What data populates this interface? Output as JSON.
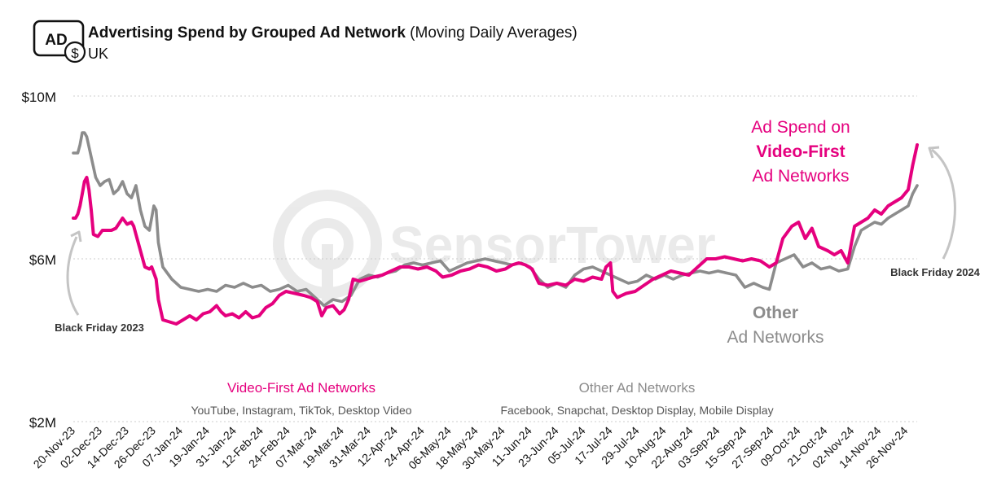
{
  "header": {
    "icon_name": "ad-dollar-icon",
    "icon_text": "AD",
    "title": "Advertising Spend by Grouped Ad Network",
    "subtitle": "(Moving Daily Averages)",
    "region": "UK"
  },
  "watermark": "SensorTower",
  "annotations": {
    "video_first_callout": [
      "Ad Spend on",
      "Video-First",
      "Ad Networks"
    ],
    "other_callout": [
      "Other",
      "Ad Networks"
    ],
    "black_friday_2023": "Black Friday 2023",
    "black_friday_2024": "Black Friday 2024"
  },
  "legend": {
    "video_first": {
      "title": "Video-First Ad Networks",
      "desc": "YouTube, Instagram, TikTok, Desktop Video"
    },
    "other": {
      "title": "Other Ad Networks",
      "desc": "Facebook, Snapchat, Desktop Display, Mobile Display"
    }
  },
  "colors": {
    "video_first": "#e5007e",
    "other": "#8c8c8c",
    "grid": "#cccccc",
    "arrow": "#c4c4c4"
  },
  "chart_data": {
    "type": "line",
    "title": "Advertising Spend by Grouped Ad Network",
    "ylim": [
      2,
      10
    ],
    "y_ticks": [
      {
        "value": 10,
        "label": "$10M"
      },
      {
        "value": 6,
        "label": "$6M"
      },
      {
        "value": 2,
        "label": "$2M"
      }
    ],
    "x_ticks": [
      "20-Nov-23",
      "02-Dec-23",
      "14-Dec-23",
      "26-Dec-23",
      "07-Jan-24",
      "19-Jan-24",
      "31-Jan-24",
      "12-Feb-24",
      "24-Feb-24",
      "07-Mar-24",
      "19-Mar-24",
      "31-Mar-24",
      "12-Apr-24",
      "24-Apr-24",
      "06-May-24",
      "18-May-24",
      "30-May-24",
      "11-Jun-24",
      "23-Jun-24",
      "05-Jul-24",
      "17-Jul-24",
      "29-Jul-24",
      "10-Aug-24",
      "22-Aug-24",
      "03-Sep-24",
      "15-Sep-24",
      "27-Sep-24",
      "09-Oct-24",
      "21-Oct-24",
      "02-Nov-24",
      "14-Nov-24",
      "26-Nov-24"
    ],
    "x_start": "20-Nov-23",
    "x_end": "01-Dec-24",
    "grid": true,
    "series": [
      {
        "name": "Video-First Ad Networks",
        "key": "video_first",
        "points": [
          [
            "20-Nov-23",
            7.0
          ],
          [
            "21-Nov-23",
            7.0
          ],
          [
            "22-Nov-23",
            7.1
          ],
          [
            "23-Nov-23",
            7.3
          ],
          [
            "24-Nov-23",
            7.6
          ],
          [
            "25-Nov-23",
            7.9
          ],
          [
            "26-Nov-23",
            8.0
          ],
          [
            "27-Nov-23",
            7.7
          ],
          [
            "28-Nov-23",
            7.2
          ],
          [
            "29-Nov-23",
            6.6
          ],
          [
            "01-Dec-23",
            6.55
          ],
          [
            "03-Dec-23",
            6.7
          ],
          [
            "05-Dec-23",
            6.7
          ],
          [
            "07-Dec-23",
            6.7
          ],
          [
            "09-Dec-23",
            6.75
          ],
          [
            "12-Dec-23",
            7.0
          ],
          [
            "14-Dec-23",
            6.85
          ],
          [
            "16-Dec-23",
            6.9
          ],
          [
            "17-Dec-23",
            6.8
          ],
          [
            "18-Dec-23",
            6.6
          ],
          [
            "20-Dec-23",
            6.2
          ],
          [
            "22-Dec-23",
            5.8
          ],
          [
            "24-Dec-23",
            5.75
          ],
          [
            "25-Dec-23",
            5.8
          ],
          [
            "27-Dec-23",
            5.5
          ],
          [
            "28-Dec-23",
            5.0
          ],
          [
            "30-Dec-23",
            4.5
          ],
          [
            "02-Jan-24",
            4.45
          ],
          [
            "05-Jan-24",
            4.4
          ],
          [
            "08-Jan-24",
            4.5
          ],
          [
            "11-Jan-24",
            4.6
          ],
          [
            "14-Jan-24",
            4.5
          ],
          [
            "17-Jan-24",
            4.65
          ],
          [
            "20-Jan-24",
            4.7
          ],
          [
            "23-Jan-24",
            4.85
          ],
          [
            "25-Jan-24",
            4.7
          ],
          [
            "27-Jan-24",
            4.6
          ],
          [
            "30-Jan-24",
            4.65
          ],
          [
            "02-Feb-24",
            4.55
          ],
          [
            "05-Feb-24",
            4.7
          ],
          [
            "08-Feb-24",
            4.55
          ],
          [
            "11-Feb-24",
            4.6
          ],
          [
            "14-Feb-24",
            4.8
          ],
          [
            "17-Feb-24",
            4.9
          ],
          [
            "20-Feb-24",
            5.1
          ],
          [
            "23-Feb-24",
            5.2
          ],
          [
            "27-Feb-24",
            5.15
          ],
          [
            "02-Mar-24",
            5.1
          ],
          [
            "05-Mar-24",
            5.05
          ],
          [
            "08-Mar-24",
            4.95
          ],
          [
            "10-Mar-24",
            4.6
          ],
          [
            "12-Mar-24",
            4.8
          ],
          [
            "15-Mar-24",
            4.85
          ],
          [
            "18-Mar-24",
            4.65
          ],
          [
            "20-Mar-24",
            4.75
          ],
          [
            "22-Mar-24",
            5.0
          ],
          [
            "24-Mar-24",
            5.5
          ],
          [
            "27-Mar-24",
            5.45
          ],
          [
            "30-Mar-24",
            5.5
          ],
          [
            "02-Apr-24",
            5.55
          ],
          [
            "06-Apr-24",
            5.6
          ],
          [
            "10-Apr-24",
            5.7
          ],
          [
            "14-Apr-24",
            5.8
          ],
          [
            "18-Apr-24",
            5.8
          ],
          [
            "22-Apr-24",
            5.75
          ],
          [
            "26-Apr-24",
            5.8
          ],
          [
            "30-Apr-24",
            5.7
          ],
          [
            "03-May-24",
            5.55
          ],
          [
            "07-May-24",
            5.6
          ],
          [
            "11-May-24",
            5.7
          ],
          [
            "15-May-24",
            5.75
          ],
          [
            "19-May-24",
            5.85
          ],
          [
            "23-May-24",
            5.8
          ],
          [
            "27-May-24",
            5.7
          ],
          [
            "31-May-24",
            5.75
          ],
          [
            "03-Jun-24",
            5.85
          ],
          [
            "06-Jun-24",
            5.9
          ],
          [
            "09-Jun-24",
            5.85
          ],
          [
            "12-Jun-24",
            5.75
          ],
          [
            "15-Jun-24",
            5.4
          ],
          [
            "19-Jun-24",
            5.35
          ],
          [
            "23-Jun-24",
            5.4
          ],
          [
            "27-Jun-24",
            5.35
          ],
          [
            "01-Jul-24",
            5.5
          ],
          [
            "05-Jul-24",
            5.45
          ],
          [
            "09-Jul-24",
            5.55
          ],
          [
            "13-Jul-24",
            5.5
          ],
          [
            "15-Jul-24",
            5.8
          ],
          [
            "17-Jul-24",
            5.9
          ],
          [
            "18-Jul-24",
            5.2
          ],
          [
            "20-Jul-24",
            5.05
          ],
          [
            "24-Jul-24",
            5.15
          ],
          [
            "28-Jul-24",
            5.2
          ],
          [
            "01-Aug-24",
            5.35
          ],
          [
            "05-Aug-24",
            5.5
          ],
          [
            "09-Aug-24",
            5.6
          ],
          [
            "13-Aug-24",
            5.7
          ],
          [
            "17-Aug-24",
            5.65
          ],
          [
            "21-Aug-24",
            5.6
          ],
          [
            "25-Aug-24",
            5.8
          ],
          [
            "29-Aug-24",
            6.0
          ],
          [
            "02-Sep-24",
            6.0
          ],
          [
            "06-Sep-24",
            6.05
          ],
          [
            "10-Sep-24",
            6.0
          ],
          [
            "14-Sep-24",
            5.95
          ],
          [
            "18-Sep-24",
            6.0
          ],
          [
            "22-Sep-24",
            5.95
          ],
          [
            "26-Sep-24",
            5.8
          ],
          [
            "29-Sep-24",
            5.9
          ],
          [
            "02-Oct-24",
            6.5
          ],
          [
            "06-Oct-24",
            6.8
          ],
          [
            "09-Oct-24",
            6.9
          ],
          [
            "12-Oct-24",
            6.5
          ],
          [
            "15-Oct-24",
            6.75
          ],
          [
            "18-Oct-24",
            6.3
          ],
          [
            "22-Oct-24",
            6.2
          ],
          [
            "25-Oct-24",
            6.1
          ],
          [
            "28-Oct-24",
            6.2
          ],
          [
            "31-Oct-24",
            5.9
          ],
          [
            "03-Nov-24",
            6.8
          ],
          [
            "06-Nov-24",
            6.9
          ],
          [
            "09-Nov-24",
            7.0
          ],
          [
            "12-Nov-24",
            7.2
          ],
          [
            "15-Nov-24",
            7.1
          ],
          [
            "18-Nov-24",
            7.3
          ],
          [
            "21-Nov-24",
            7.4
          ],
          [
            "24-Nov-24",
            7.5
          ],
          [
            "27-Nov-24",
            7.7
          ],
          [
            "29-Nov-24",
            8.3
          ],
          [
            "01-Dec-24",
            8.8
          ]
        ]
      },
      {
        "name": "Other Ad Networks",
        "key": "other",
        "points": [
          [
            "20-Nov-23",
            8.6
          ],
          [
            "21-Nov-23",
            8.6
          ],
          [
            "22-Nov-23",
            8.6
          ],
          [
            "23-Nov-23",
            8.8
          ],
          [
            "24-Nov-23",
            9.1
          ],
          [
            "25-Nov-23",
            9.1
          ],
          [
            "26-Nov-23",
            9.0
          ],
          [
            "28-Nov-23",
            8.5
          ],
          [
            "30-Nov-23",
            8.0
          ],
          [
            "02-Dec-23",
            7.8
          ],
          [
            "04-Dec-23",
            7.9
          ],
          [
            "06-Dec-23",
            7.95
          ],
          [
            "08-Dec-23",
            7.6
          ],
          [
            "10-Dec-23",
            7.7
          ],
          [
            "12-Dec-23",
            7.9
          ],
          [
            "14-Dec-23",
            7.6
          ],
          [
            "16-Dec-23",
            7.5
          ],
          [
            "18-Dec-23",
            7.8
          ],
          [
            "20-Dec-23",
            7.2
          ],
          [
            "22-Dec-23",
            6.8
          ],
          [
            "24-Dec-23",
            6.7
          ],
          [
            "26-Dec-23",
            7.3
          ],
          [
            "27-Dec-23",
            7.2
          ],
          [
            "28-Dec-23",
            6.4
          ],
          [
            "30-Dec-23",
            5.8
          ],
          [
            "03-Jan-24",
            5.5
          ],
          [
            "07-Jan-24",
            5.3
          ],
          [
            "11-Jan-24",
            5.25
          ],
          [
            "15-Jan-24",
            5.2
          ],
          [
            "19-Jan-24",
            5.25
          ],
          [
            "23-Jan-24",
            5.2
          ],
          [
            "27-Jan-24",
            5.35
          ],
          [
            "31-Jan-24",
            5.3
          ],
          [
            "04-Feb-24",
            5.4
          ],
          [
            "08-Feb-24",
            5.3
          ],
          [
            "12-Feb-24",
            5.35
          ],
          [
            "16-Feb-24",
            5.2
          ],
          [
            "20-Feb-24",
            5.25
          ],
          [
            "24-Feb-24",
            5.35
          ],
          [
            "28-Feb-24",
            5.2
          ],
          [
            "03-Mar-24",
            5.25
          ],
          [
            "07-Mar-24",
            5.05
          ],
          [
            "11-Mar-24",
            4.85
          ],
          [
            "15-Mar-24",
            5.0
          ],
          [
            "19-Mar-24",
            4.95
          ],
          [
            "23-Mar-24",
            5.1
          ],
          [
            "27-Mar-24",
            5.5
          ],
          [
            "31-Mar-24",
            5.6
          ],
          [
            "04-Apr-24",
            5.55
          ],
          [
            "08-Apr-24",
            5.65
          ],
          [
            "12-Apr-24",
            5.7
          ],
          [
            "16-Apr-24",
            5.85
          ],
          [
            "20-Apr-24",
            5.9
          ],
          [
            "24-Apr-24",
            5.85
          ],
          [
            "28-Apr-24",
            5.9
          ],
          [
            "02-May-24",
            5.95
          ],
          [
            "06-May-24",
            5.7
          ],
          [
            "10-May-24",
            5.8
          ],
          [
            "14-May-24",
            5.9
          ],
          [
            "18-May-24",
            5.95
          ],
          [
            "22-May-24",
            6.0
          ],
          [
            "26-May-24",
            5.95
          ],
          [
            "30-May-24",
            5.9
          ],
          [
            "03-Jun-24",
            5.85
          ],
          [
            "07-Jun-24",
            5.9
          ],
          [
            "11-Jun-24",
            5.8
          ],
          [
            "15-Jun-24",
            5.5
          ],
          [
            "19-Jun-24",
            5.3
          ],
          [
            "23-Jun-24",
            5.4
          ],
          [
            "27-Jun-24",
            5.3
          ],
          [
            "01-Jul-24",
            5.6
          ],
          [
            "05-Jul-24",
            5.75
          ],
          [
            "09-Jul-24",
            5.8
          ],
          [
            "13-Jul-24",
            5.7
          ],
          [
            "17-Jul-24",
            5.6
          ],
          [
            "21-Jul-24",
            5.5
          ],
          [
            "25-Jul-24",
            5.4
          ],
          [
            "29-Jul-24",
            5.45
          ],
          [
            "02-Aug-24",
            5.6
          ],
          [
            "06-Aug-24",
            5.5
          ],
          [
            "10-Aug-24",
            5.6
          ],
          [
            "14-Aug-24",
            5.5
          ],
          [
            "18-Aug-24",
            5.6
          ],
          [
            "22-Aug-24",
            5.65
          ],
          [
            "26-Aug-24",
            5.7
          ],
          [
            "30-Aug-24",
            5.65
          ],
          [
            "03-Sep-24",
            5.7
          ],
          [
            "07-Sep-24",
            5.65
          ],
          [
            "11-Sep-24",
            5.6
          ],
          [
            "15-Sep-24",
            5.3
          ],
          [
            "19-Sep-24",
            5.4
          ],
          [
            "23-Sep-24",
            5.3
          ],
          [
            "26-Sep-24",
            5.25
          ],
          [
            "29-Sep-24",
            5.9
          ],
          [
            "03-Oct-24",
            6.0
          ],
          [
            "07-Oct-24",
            6.1
          ],
          [
            "11-Oct-24",
            5.8
          ],
          [
            "15-Oct-24",
            5.9
          ],
          [
            "19-Oct-24",
            5.75
          ],
          [
            "23-Oct-24",
            5.8
          ],
          [
            "27-Oct-24",
            5.7
          ],
          [
            "31-Oct-24",
            5.75
          ],
          [
            "03-Nov-24",
            6.3
          ],
          [
            "06-Nov-24",
            6.7
          ],
          [
            "09-Nov-24",
            6.8
          ],
          [
            "12-Nov-24",
            6.9
          ],
          [
            "15-Nov-24",
            6.85
          ],
          [
            "18-Nov-24",
            7.0
          ],
          [
            "21-Nov-24",
            7.1
          ],
          [
            "24-Nov-24",
            7.2
          ],
          [
            "27-Nov-24",
            7.3
          ],
          [
            "29-Nov-24",
            7.6
          ],
          [
            "01-Dec-24",
            7.8
          ]
        ]
      }
    ]
  }
}
